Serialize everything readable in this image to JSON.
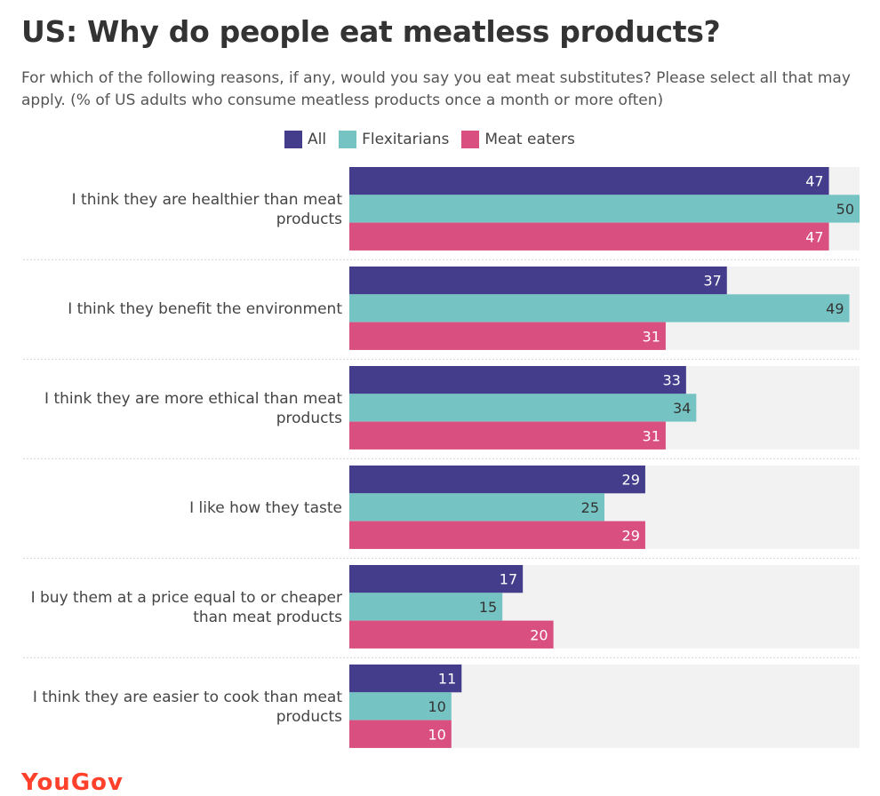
{
  "title": "US: Why do people eat meatless products?",
  "subtitle": "For which of the following reasons, if any, would you say you eat meat substitutes? Please select all that may apply. (% of US adults who consume meatless products once a month or more often)",
  "brand": "YouGov",
  "colors": {
    "All": "#433d8b",
    "Flexitarians": "#75c4c3",
    "Meat eaters": "#d94f7f",
    "track": "#f2f2f2",
    "separator": "#d9d9d9"
  },
  "chart_data": {
    "type": "bar",
    "orientation": "horizontal",
    "title": "US: Why do people eat meatless products?",
    "xlim": [
      0,
      50
    ],
    "legend_position": "top-center",
    "categories": [
      [
        "I think they are healthier than meat",
        "products"
      ],
      [
        "I think they benefit the environment"
      ],
      [
        "I think they are more ethical than meat",
        "products"
      ],
      [
        "I like how they taste"
      ],
      [
        "I buy them at a price equal to or cheaper",
        "than meat products"
      ],
      [
        "I think they are easier to cook than meat",
        "products"
      ]
    ],
    "series": [
      {
        "name": "All",
        "color": "#433d8b",
        "label_color": "#ffffff",
        "values": [
          47,
          37,
          33,
          29,
          17,
          11
        ]
      },
      {
        "name": "Flexitarians",
        "color": "#75c4c3",
        "label_color": "#333333",
        "values": [
          50,
          49,
          34,
          25,
          15,
          10
        ]
      },
      {
        "name": "Meat eaters",
        "color": "#d94f7f",
        "label_color": "#ffffff",
        "values": [
          47,
          31,
          31,
          29,
          20,
          10
        ]
      }
    ]
  }
}
